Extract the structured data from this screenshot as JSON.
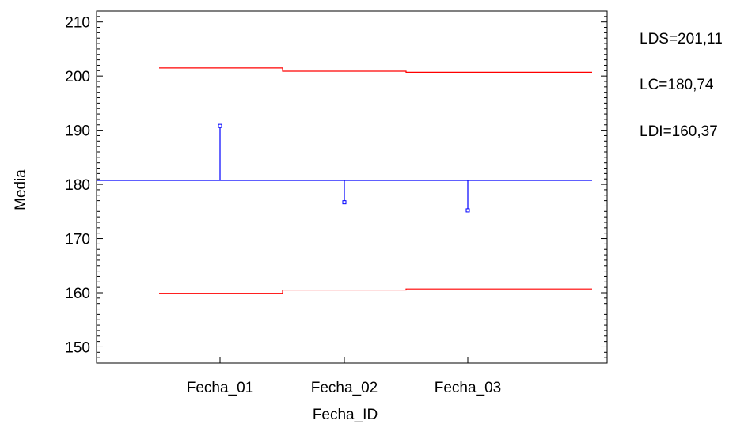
{
  "chart_data": {
    "type": "line",
    "title": "",
    "xlabel": "Fecha_ID",
    "ylabel": "Media",
    "ylim": [
      147,
      212
    ],
    "yticks": [
      150,
      160,
      170,
      180,
      190,
      200,
      210
    ],
    "categories": [
      "Fecha_01",
      "Fecha_02",
      "Fecha_03"
    ],
    "series": [
      {
        "values": [
          190.8,
          176.7,
          175.2
        ]
      }
    ],
    "center_line": 180.74,
    "upper_limits": [
      201.5,
      200.9,
      200.7
    ],
    "lower_limits": [
      159.9,
      160.5,
      160.7
    ],
    "limit_labels": [
      "LDS=201,11",
      "LC=180,74",
      "LDI=160,37"
    ],
    "grid": false,
    "colors": {
      "points": "#0000ff",
      "center_line": "#0000ff",
      "limits": "#ff0000",
      "axes": "#000000"
    }
  }
}
